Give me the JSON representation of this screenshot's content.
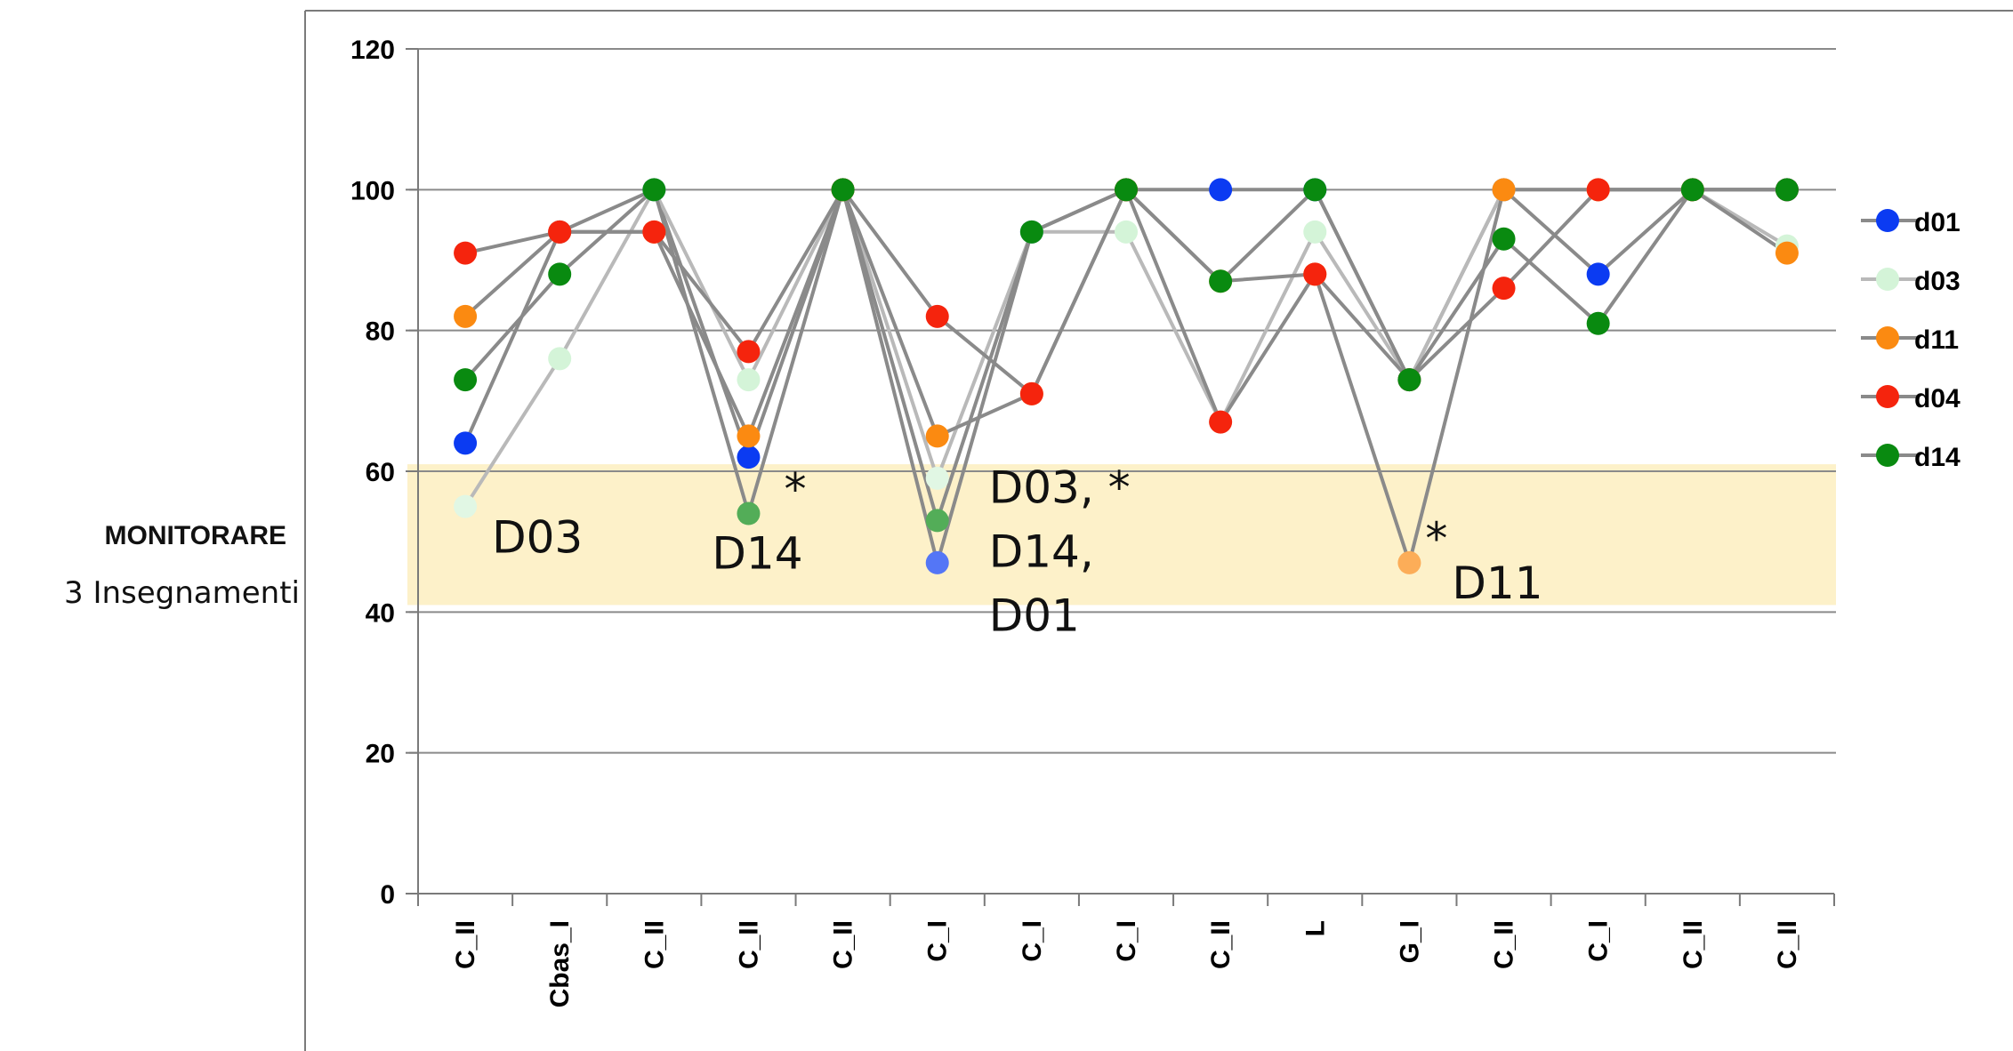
{
  "side_label": {
    "title": "MONITORARE",
    "subtitle": "3 Insegnamenti"
  },
  "chart_data": {
    "type": "line",
    "title": "",
    "xlabel": "",
    "ylabel": "",
    "ylim": [
      0,
      120
    ],
    "yticks": [
      0,
      20,
      40,
      60,
      80,
      100,
      120
    ],
    "grid": true,
    "legend_position": "right",
    "highlight_band": {
      "from": 41,
      "to": 61,
      "color": "#fdf1c9"
    },
    "categories": [
      "C_II",
      "Cbas_I",
      "C_II",
      "C_II",
      "C_II",
      "C_I",
      "C_I",
      "C_I",
      "C_II",
      "L",
      "G_I",
      "C_II",
      "C_I",
      "C_II",
      "C_II"
    ],
    "series": [
      {
        "name": "d01",
        "color": "#0b3bf2",
        "values": [
          64,
          94,
          100,
          62,
          100,
          47,
          94,
          100,
          100,
          100,
          73,
          100,
          88,
          100,
          100
        ]
      },
      {
        "name": "d03",
        "color": "#d4f4d8",
        "values": [
          55,
          76,
          100,
          73,
          100,
          59,
          94,
          94,
          67,
          94,
          73,
          100,
          100,
          100,
          92
        ]
      },
      {
        "name": "d11",
        "color": "#fb8a11",
        "values": [
          82,
          94,
          94,
          65,
          100,
          65,
          71,
          100,
          87,
          88,
          47,
          100,
          100,
          100,
          91
        ]
      },
      {
        "name": "d04",
        "color": "#f5240d",
        "values": [
          91,
          94,
          94,
          77,
          100,
          82,
          71,
          100,
          67,
          88,
          73,
          86,
          100,
          100,
          100
        ]
      },
      {
        "name": "d14",
        "color": "#098a10",
        "values": [
          73,
          88,
          100,
          54,
          100,
          53,
          94,
          100,
          87,
          100,
          73,
          93,
          81,
          100,
          100
        ]
      }
    ],
    "annotations": [
      {
        "id": "d03-c1",
        "lines": [
          "D03"
        ],
        "category_index": 0,
        "value": 55
      },
      {
        "id": "d14-c4",
        "lines": [
          "*",
          "D14"
        ],
        "category_index": 3,
        "value": 54
      },
      {
        "id": "multi-c6",
        "lines": [
          "D03, *",
          "D14,",
          "D01"
        ],
        "category_index": 5,
        "value": 53
      },
      {
        "id": "d11-c11",
        "lines": [
          "*",
          "D11"
        ],
        "category_index": 10,
        "value": 47
      }
    ]
  }
}
